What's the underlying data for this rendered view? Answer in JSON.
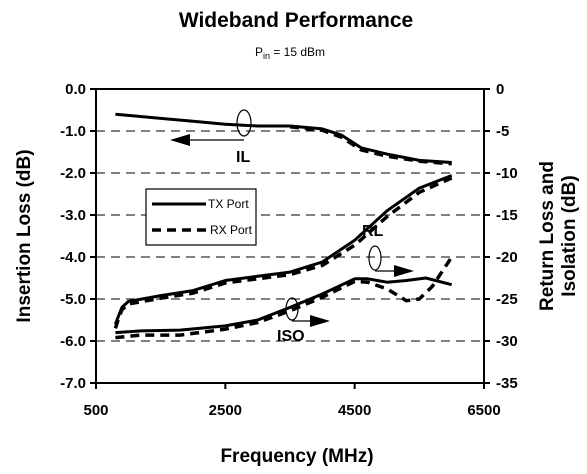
{
  "chart_data": {
    "type": "line",
    "title": "Wideband Performance",
    "subtitle": {
      "main": "P",
      "sub": "in",
      "rest": " = 15 dBm"
    },
    "xlabel": "Frequency (MHz)",
    "ylabel_left": "Insertion Loss (dB)",
    "ylabel_right": [
      "Return Loss and",
      "Isolation (dB)"
    ],
    "xlim": [
      500,
      6500
    ],
    "ylim_left": [
      -7.0,
      0.0
    ],
    "ylim_right": [
      -35,
      0
    ],
    "x_ticks": [
      500,
      2500,
      4500,
      6500
    ],
    "x_tick_labels": [
      "500",
      "2500",
      "4500",
      "6500"
    ],
    "y_left_ticks": [
      0.0,
      -1.0,
      -2.0,
      -3.0,
      -4.0,
      -5.0,
      -6.0,
      -7.0
    ],
    "y_left_tick_labels": [
      "0.0",
      "-1.0",
      "-2.0",
      "-3.0",
      "-4.0",
      "-5.0",
      "-6.0",
      "-7.0"
    ],
    "y_right_ticks": [
      0,
      -5,
      -10,
      -15,
      -20,
      -25,
      -30,
      -35
    ],
    "y_right_tick_labels": [
      "0",
      "-5",
      "-10",
      "-15",
      "-20",
      "-25",
      "-30",
      "-35"
    ],
    "grid": "horizontal dashed",
    "legend": {
      "placement": "center-left",
      "entries": [
        {
          "label": "TX Port",
          "style": "solid"
        },
        {
          "label": "RX Port",
          "style": "dashed"
        }
      ]
    },
    "annotations": [
      {
        "label": "IL",
        "arrow": "left",
        "axis": "left"
      },
      {
        "label": "RL",
        "arrow": "right",
        "axis": "right"
      },
      {
        "label": "ISO",
        "arrow": "right",
        "axis": "right"
      }
    ],
    "series": [
      {
        "group": "IL",
        "port": "TX Port",
        "axis": "left",
        "style": "solid",
        "x": [
          800,
          1500,
          2000,
          2500,
          3000,
          3500,
          4000,
          4300,
          4600,
          5000,
          5500,
          6000
        ],
        "y": [
          -0.6,
          -0.7,
          -0.77,
          -0.84,
          -0.88,
          -0.88,
          -0.95,
          -1.1,
          -1.4,
          -1.55,
          -1.7,
          -1.75
        ]
      },
      {
        "group": "IL",
        "port": "RX Port",
        "axis": "left",
        "style": "dashed",
        "x": [
          3500,
          4000,
          4300,
          4600,
          5000,
          5500,
          6000
        ],
        "y": [
          -0.9,
          -0.98,
          -1.15,
          -1.45,
          -1.6,
          -1.72,
          -1.78
        ]
      },
      {
        "group": "RL",
        "port": "TX Port",
        "axis": "right",
        "style": "solid",
        "x": [
          800,
          850,
          900,
          1000,
          1500,
          2000,
          2500,
          3000,
          3500,
          4000,
          4500,
          5000,
          5500,
          6000
        ],
        "y": [
          -28,
          -27,
          -26,
          -25.3,
          -24.6,
          -24,
          -22.8,
          -22.3,
          -21.8,
          -20.6,
          -18,
          -14.5,
          -11.8,
          -10.3
        ]
      },
      {
        "group": "RL",
        "port": "RX Port",
        "axis": "right",
        "style": "dashed",
        "x": [
          800,
          850,
          900,
          1000,
          1500,
          2000,
          2500,
          3000,
          3500,
          4000,
          4500,
          5000,
          5500,
          6000
        ],
        "y": [
          -28.5,
          -27.3,
          -26.3,
          -25.6,
          -24.9,
          -24.3,
          -23.1,
          -22.6,
          -22.1,
          -21,
          -18.6,
          -15.2,
          -12.3,
          -10.6
        ]
      },
      {
        "group": "ISO",
        "port": "TX Port",
        "axis": "right",
        "style": "solid",
        "x": [
          800,
          1200,
          1800,
          2500,
          3000,
          3500,
          4000,
          4500,
          4700,
          5000,
          5300,
          5600,
          6000
        ],
        "y": [
          -29,
          -28.8,
          -28.7,
          -28.2,
          -27.5,
          -26,
          -24.4,
          -22.6,
          -22.6,
          -23,
          -22.8,
          -22.5,
          -23.3
        ]
      },
      {
        "group": "ISO",
        "port": "RX Port",
        "axis": "right",
        "style": "dashed",
        "x": [
          800,
          1200,
          1800,
          2500,
          3000,
          3500,
          4000,
          4500,
          4700,
          5000,
          5300,
          5500,
          5700,
          6000
        ],
        "y": [
          -29.6,
          -29.3,
          -29.3,
          -28.6,
          -27.8,
          -26.4,
          -24.8,
          -22.9,
          -23,
          -23.8,
          -25.2,
          -25,
          -23.5,
          -20
        ]
      }
    ]
  }
}
